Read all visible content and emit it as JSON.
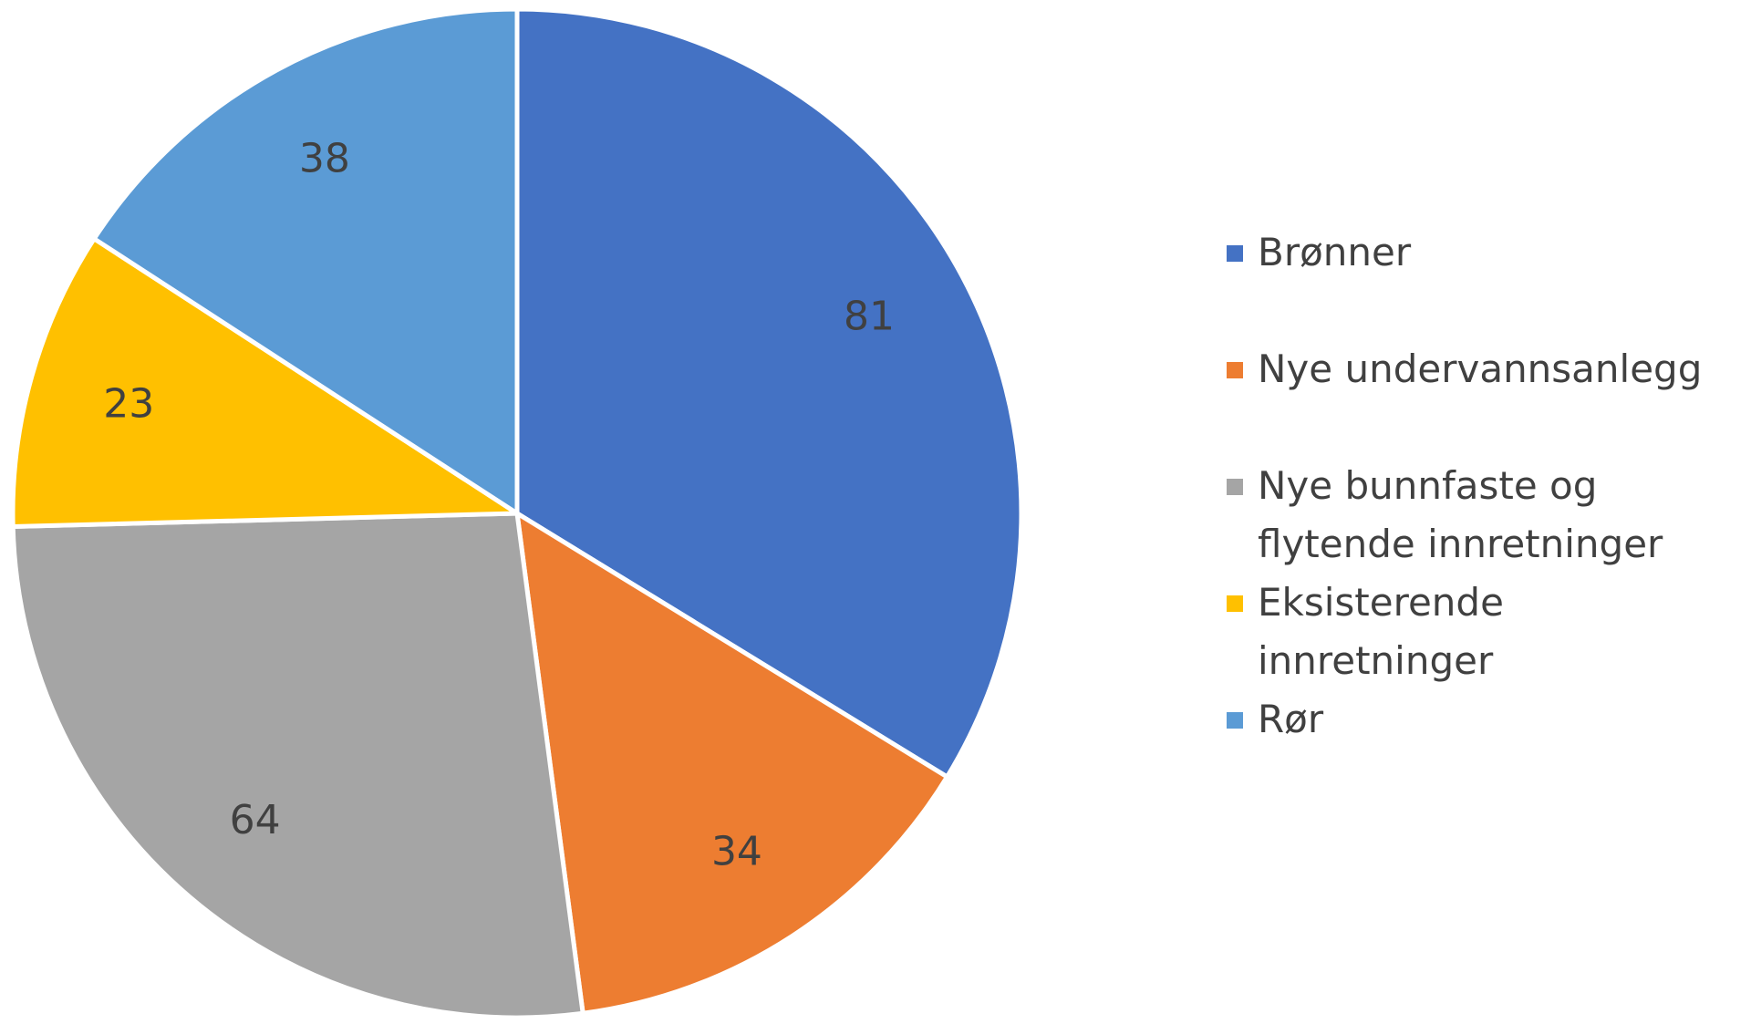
{
  "chart_data": {
    "type": "pie",
    "title": "",
    "legend_position": "right",
    "start_angle_deg": 0,
    "direction": "clockwise",
    "slices": [
      {
        "label": "Brønner",
        "value": 81,
        "color": "#4472C4"
      },
      {
        "label": "Nye undervannsanlegg",
        "value": 34,
        "color": "#ED7D31"
      },
      {
        "label": "Nye bunnfaste og flytende innretninger",
        "value": 64,
        "color": "#A5A5A5"
      },
      {
        "label": "Eksisterende innretninger",
        "value": 23,
        "color": "#FFC000"
      },
      {
        "label": "Rør",
        "value": 38,
        "color": "#5B9BD5"
      }
    ]
  }
}
